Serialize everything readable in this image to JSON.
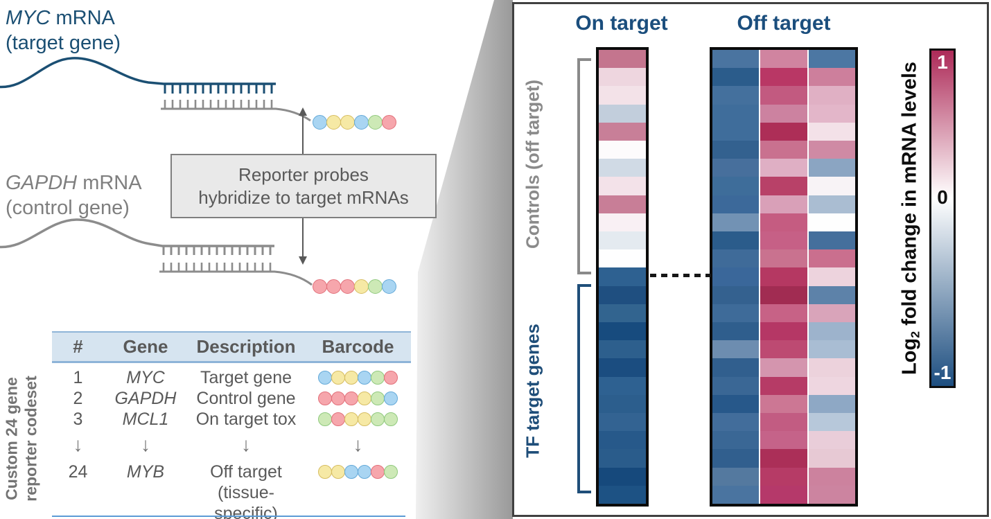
{
  "left": {
    "myc_gene": "MYC",
    "myc_rest": " mRNA",
    "myc_line2": "(target gene)",
    "gapdh_gene": "GAPDH",
    "gapdh_rest": " mRNA",
    "gapdh_line2": "(control gene)",
    "box_line1": "Reporter probes",
    "box_line2": "hybridize to target mRNAs",
    "myc_barcode": [
      "blue",
      "yellow",
      "yellow",
      "blue",
      "green",
      "red"
    ],
    "gapdh_barcode": [
      "red",
      "red",
      "red",
      "yellow",
      "green",
      "blue"
    ]
  },
  "bead_colors": {
    "blue": {
      "fill": "#a9d5f2",
      "stroke": "#64a9d8"
    },
    "yellow": {
      "fill": "#f6e9a5",
      "stroke": "#d6bd62"
    },
    "green": {
      "fill": "#cde9b6",
      "stroke": "#90c97e"
    },
    "red": {
      "fill": "#f6a6ac",
      "stroke": "#e2707a"
    }
  },
  "table": {
    "side_label_line1": "Custom 24 gene",
    "side_label_line2": "reporter codeset",
    "headers": {
      "num": "#",
      "gene": "Gene",
      "description": "Description",
      "barcode": "Barcode"
    },
    "arrow_glyph": "↓",
    "rows": [
      {
        "num": "1",
        "gene": "MYC",
        "description": "Target gene",
        "barcode": [
          "blue",
          "yellow",
          "yellow",
          "blue",
          "green",
          "red"
        ]
      },
      {
        "num": "2",
        "gene": "GAPDH",
        "description": "Control gene",
        "barcode": [
          "red",
          "red",
          "red",
          "yellow",
          "green",
          "blue"
        ]
      },
      {
        "num": "3",
        "gene": "MCL1",
        "description": "On target tox",
        "barcode": [
          "green",
          "red",
          "yellow",
          "yellow",
          "green",
          "green"
        ]
      }
    ],
    "last_row": {
      "num": "24",
      "gene": "MYB",
      "description_line1": "Off target",
      "description_line2": "(tissue-specific)",
      "barcode": [
        "yellow",
        "yellow",
        "blue",
        "blue",
        "red",
        "green"
      ]
    }
  },
  "panel": {
    "on_target_header": "On target",
    "off_target_header": "Off target",
    "controls_label": "Controls (off target)",
    "tf_label": "TF target genes",
    "header_color": "#1b4e7d",
    "controls_color": "#8a8a8a",
    "tf_color": "#1f4e79"
  },
  "legend": {
    "title_prefix": "Log",
    "title_sub": "2",
    "title_suffix": " fold change in mRNA levels",
    "top_label": "1",
    "mid_label": "0",
    "bottom_label": "-1",
    "top_color": "#ad2a58",
    "mid_color": "#ffffff",
    "bottom_color": "#1d4e80",
    "mid_position": "44%",
    "range": [
      -1,
      1
    ]
  },
  "chart_data": {
    "type": "heatmap",
    "columns": [
      "On target",
      "Off target 1",
      "Off target 2",
      "Off target 3"
    ],
    "row_sections": {
      "controls_rows": 12,
      "tf_target_rows": 13
    },
    "value_scale": {
      "label": "Log2 fold change in mRNA levels",
      "min": -1,
      "max": 1
    },
    "on_target": [
      "#c4758e",
      "#eed6df",
      "#f3e2e8",
      "#c2cedc",
      "#c87f98",
      "#fdfbfc",
      "#d0dae5",
      "#f3e2e9",
      "#c87e97",
      "#f9f0f4",
      "#e4eaf0",
      "#fefeff",
      "#2e6191",
      "#1f4f80",
      "#32648f",
      "#174b7e",
      "#2d5f8d",
      "#1b4d80",
      "#2e6191",
      "#2c5e8d",
      "#336392",
      "#27598a",
      "#2a5c8b",
      "#16497c",
      "#1d5284"
    ],
    "off_target": [
      [
        "#4a74a0",
        "#d084a0",
        "#4c77a3"
      ],
      [
        "#2b5c8b",
        "#b93765",
        "#cd7f9c"
      ],
      [
        "#44709d",
        "#c25a80",
        "#e0b0c4"
      ],
      [
        "#3f6d9b",
        "#cc82a0",
        "#e3b6c9"
      ],
      [
        "#3f6d9b",
        "#ad2e57",
        "#f3e1e8"
      ],
      [
        "#33618f",
        "#c9718f",
        "#cf8aa4"
      ],
      [
        "#476f9c",
        "#dfafc4",
        "#8ba5c2"
      ],
      [
        "#3e6d9a",
        "#b84168",
        "#f8f3f6"
      ],
      [
        "#3c699a",
        "#d9a0b8",
        "#aabdd2"
      ],
      [
        "#7292b4",
        "#c55c81",
        "#fefefe"
      ],
      [
        "#2b5c8b",
        "#c66086",
        "#456f9c"
      ],
      [
        "#3f6b99",
        "#c9728f",
        "#ca6f8e"
      ],
      [
        "#3a679a",
        "#b53862",
        "#edd3dd"
      ],
      [
        "#34618f",
        "#a12c52",
        "#5d82a9"
      ],
      [
        "#3e6b99",
        "#c76286",
        "#d9a4ba"
      ],
      [
        "#2f5e8d",
        "#b53765",
        "#9db3cc"
      ],
      [
        "#6d8db0",
        "#bd4a72",
        "#a9bdd3"
      ],
      [
        "#315f8e",
        "#d495ae",
        "#ecd2dc"
      ],
      [
        "#3a6795",
        "#b63b66",
        "#eed6e0"
      ],
      [
        "#27588a",
        "#cc7794",
        "#8ea8c5"
      ],
      [
        "#426d9b",
        "#c25c82",
        "#b7c8da"
      ],
      [
        "#3a6795",
        "#c56389",
        "#e9cdd9"
      ],
      [
        "#315f8e",
        "#ab2f58",
        "#e7c9d4"
      ],
      [
        "#54799f",
        "#b63b66",
        "#cc829e"
      ],
      [
        "#4a74a0",
        "#b5396a",
        "#cc84a0"
      ]
    ]
  }
}
